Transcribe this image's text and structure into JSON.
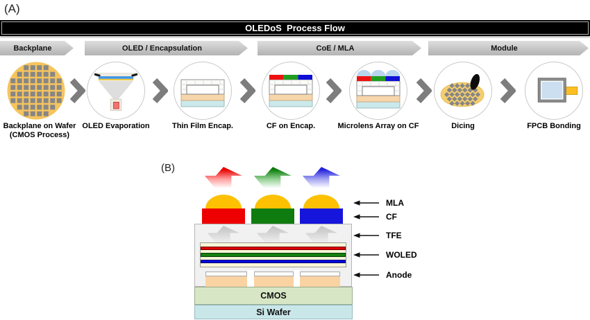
{
  "figure": {
    "panel_a_label": "(A)",
    "panel_b_label": "(B)"
  },
  "process_flow": {
    "title": "OLEDoS  Process Flow",
    "stages": [
      "Backplane",
      "OLED / Encapsulation",
      "CoE / MLA",
      "Module"
    ],
    "steps": [
      {
        "label": "Backplane on Wafer",
        "sublabel": "(CMOS Process)",
        "icon": "wafer-icon"
      },
      {
        "label": "OLED Evaporation",
        "sublabel": "",
        "icon": "evaporation-icon"
      },
      {
        "label": "Thin Film Encap.",
        "sublabel": "",
        "icon": "tfe-stack-icon"
      },
      {
        "label": "CF on Encap.",
        "sublabel": "",
        "icon": "cf-stack-icon"
      },
      {
        "label": "Microlens Array on CF",
        "sublabel": "",
        "icon": "microlens-stack-icon"
      },
      {
        "label": "Dicing",
        "sublabel": "",
        "icon": "dicing-icon"
      },
      {
        "label": "FPCB Bonding",
        "sublabel": "",
        "icon": "fpcb-icon"
      }
    ]
  },
  "device_stack": {
    "layers": [
      "MLA",
      "CF",
      "TFE",
      "WOLED",
      "Anode"
    ],
    "cmos_label": "CMOS",
    "si_wafer_label": "Si Wafer",
    "colors": {
      "emission_red": "#e90000",
      "emission_green": "#0a7d0a",
      "emission_blue": "#2222dd",
      "mla": "#fdc101",
      "cf_red": "#ee0000",
      "cf_green": "#0f7c10",
      "cf_blue": "#1515dc",
      "tfe_box": "#f1f1f1",
      "woled_base": "#f7f7d8",
      "woled_red": "#df0000",
      "woled_green": "#157f0f",
      "woled_blue": "#0009e0",
      "anode": "#f9d3a2",
      "cmos": "#d7e7c5",
      "si_wafer": "#c9e7e9",
      "wafer_orange": "#f6c45e",
      "die_gray": "#868686"
    }
  }
}
